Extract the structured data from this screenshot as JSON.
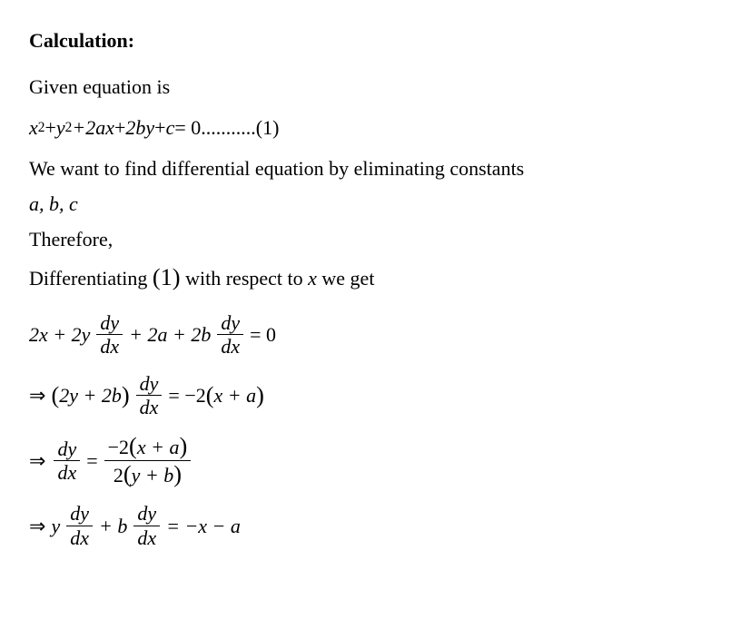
{
  "heading": "Calculation:",
  "p1": "Given equation is",
  "eq1": {
    "x2": "x",
    "p2": "2",
    "plus": " + ",
    "y2": "y",
    "twoax": "+2ax",
    "twoby": "+ 2by",
    "plusc": "+ c",
    "eq0": " = 0",
    "dots": " ...........(1)"
  },
  "p2": "We want to find differential equation by eliminating constants",
  "abc": "a, b, c",
  "p3": "Therefore,",
  "p4a": "Differentiating ",
  "p4ref": "(1)",
  "p4b": " with respect to ",
  "p4x": "x",
  "p4c": " we get",
  "line1": {
    "a": "2x + 2y",
    "dy": "dy",
    "dx": "dx",
    "b": "+ 2a + 2b",
    "eq": "= 0"
  },
  "line2": {
    "arrow": "⇒",
    "lpar": "(",
    "inner": "2y + 2b",
    "rpar": ")",
    "dy": "dy",
    "dx": "dx",
    "eq": "= −2",
    "lpar2": "(",
    "inner2": "x + a",
    "rpar2": ")"
  },
  "line3": {
    "arrow": "⇒",
    "dy": "dy",
    "dx": "dx",
    "eq": "=",
    "num_a": "−2",
    "num_l": "(",
    "num_in": "x + a",
    "num_r": ")",
    "den_a": "2",
    "den_l": "(",
    "den_in": "y + b",
    "den_r": ")"
  },
  "line4": {
    "arrow": "⇒",
    "y": "y",
    "dy": "dy",
    "dx": "dx",
    "plusb": "+ b",
    "eq": "= −x − a"
  }
}
